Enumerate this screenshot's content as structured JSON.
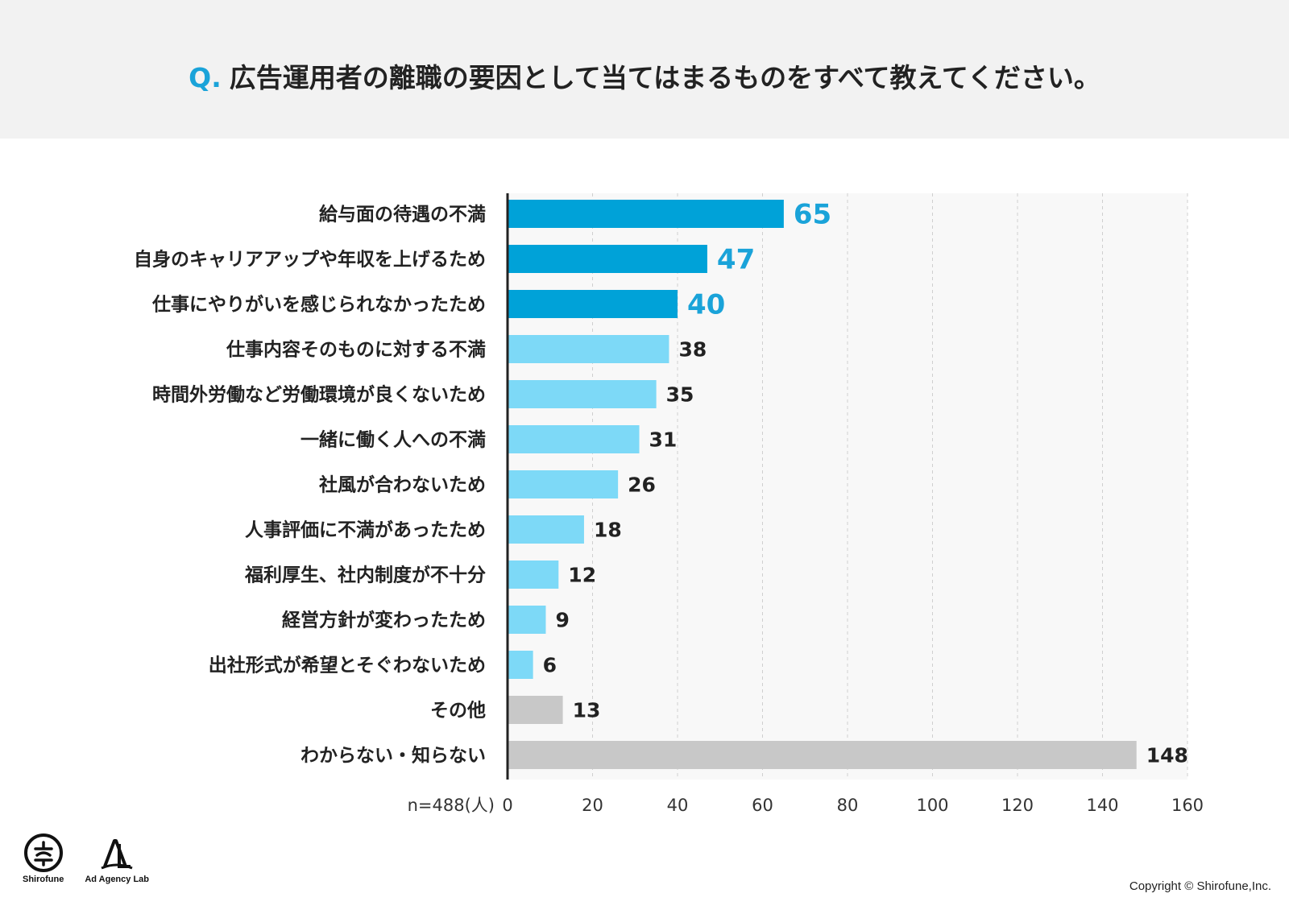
{
  "header": {
    "q_mark": "Q.",
    "question": "広告運用者の離職の要因として当てはまるものをすべて教えてください。"
  },
  "colors": {
    "highlight": "#00a2d8",
    "highlight_label": "#1aa3d9",
    "normal": "#7dd9f7",
    "other": "#c8c8c8",
    "text": "#222222",
    "grid": "#cfcfcf",
    "plot_bg": "#f8f8f8"
  },
  "chart_data": {
    "type": "bar",
    "orientation": "horizontal",
    "title": "広告運用者の離職の要因として当てはまるものをすべて教えてください。",
    "categories": [
      "給与面の待遇の不満",
      "自身のキャリアアップや年収を上げるため",
      "仕事にやりがいを感じられなかったため",
      "仕事内容そのものに対する不満",
      "時間外労働など労働環境が良くないため",
      "一緒に働く人への不満",
      "社風が合わないため",
      "人事評価に不満があったため",
      "福利厚生、社内制度が不十分",
      "経営方針が変わったため",
      "出社形式が希望とそぐわないため",
      "その他",
      "わからない・知らない"
    ],
    "values": [
      65,
      47,
      40,
      38,
      35,
      31,
      26,
      18,
      12,
      9,
      6,
      13,
      148
    ],
    "highlight_top": 3,
    "other_categories": [
      "その他",
      "わからない・知らない"
    ],
    "xlim": [
      0,
      160
    ],
    "xticks": [
      0,
      20,
      40,
      60,
      80,
      100,
      120,
      140,
      160
    ],
    "xlabel": "n=488(人)",
    "grid": true,
    "grid_style": "dashed vertical"
  },
  "footer": {
    "logo1_caption": "Shirofune",
    "logo2_caption": "Ad Agency Lab",
    "copyright": "Copyright © Shirofune,Inc."
  }
}
